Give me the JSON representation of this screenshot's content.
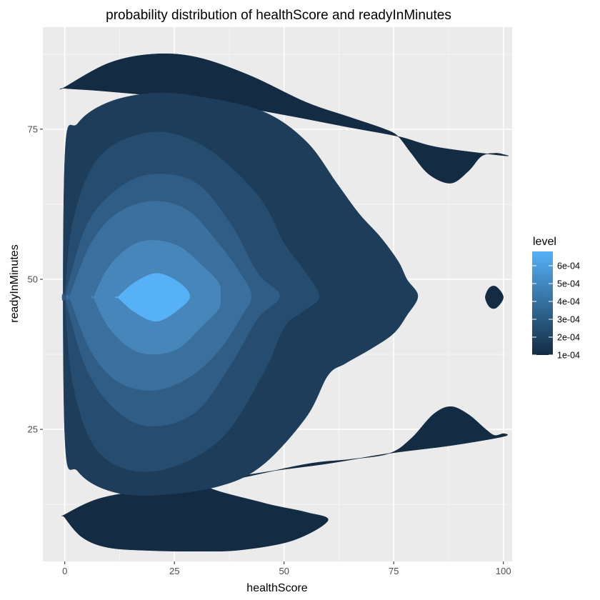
{
  "chart_data": {
    "type": "contour",
    "title": "probability distribution of healthScore and readyInMinutes",
    "xlabel": "healthScore",
    "ylabel": "readyInMinutes",
    "xlim": [
      -5,
      102
    ],
    "ylim": [
      3,
      92
    ],
    "x_ticks": [
      0,
      25,
      50,
      75,
      100
    ],
    "y_ticks": [
      25,
      50,
      75
    ],
    "x_tick_labels": [
      "0",
      "25",
      "50",
      "75",
      "100"
    ],
    "y_tick_labels": [
      "25",
      "50",
      "75"
    ],
    "legend": {
      "title": "level",
      "placement": "right",
      "min": 0.0001,
      "max": 0.00068,
      "ticks": [
        0.0001,
        0.0002,
        0.0003,
        0.0004,
        0.0005,
        0.0006
      ],
      "labels": [
        "1e-04",
        "2e-04",
        "3e-04",
        "4e-04",
        "5e-04",
        "6e-04"
      ],
      "color_low": "#132b43",
      "color_high": "#56b1f7"
    },
    "bands": [
      {
        "level": 0.0001,
        "color": "#132B43",
        "regions": [
          [
            [
              0,
              82
            ],
            [
              10,
              86
            ],
            [
              20,
              87.5
            ],
            [
              30,
              87
            ],
            [
              42,
              84
            ],
            [
              55,
              79.5
            ],
            [
              65,
              77
            ],
            [
              73,
              75
            ],
            [
              76,
              73.8
            ],
            [
              79,
              71
            ],
            [
              83,
              67.5
            ],
            [
              88,
              66
            ],
            [
              92,
              68
            ],
            [
              95,
              70.5
            ],
            [
              98,
              71
            ],
            [
              100,
              70.8
            ],
            [
              100,
              70.6
            ],
            [
              85,
              72
            ],
            [
              76,
              73.8
            ],
            [
              65,
              75.3
            ],
            [
              50,
              77.4
            ],
            [
              35,
              79.3
            ],
            [
              20,
              80.6
            ],
            [
              8,
              81.4
            ],
            [
              0,
              81.8
            ]
          ],
          [
            [
              0,
              10.8
            ],
            [
              8,
              13.5
            ],
            [
              20,
              15
            ],
            [
              35,
              16.2
            ],
            [
              55,
              19.2
            ],
            [
              65,
              20
            ],
            [
              74,
              21
            ],
            [
              79,
              23.5
            ],
            [
              84,
              27.5
            ],
            [
              88,
              28.8
            ],
            [
              92,
              27.5
            ],
            [
              96,
              25
            ],
            [
              98,
              24
            ],
            [
              100,
              24.3
            ],
            [
              100,
              23.8
            ],
            [
              88,
              22.3
            ],
            [
              74,
              21
            ],
            [
              60,
              19.3
            ],
            [
              45,
              17.8
            ],
            [
              32,
              15.8
            ],
            [
              45,
              12.8
            ],
            [
              55,
              11.2
            ],
            [
              60,
              9.8
            ],
            [
              52,
              6.5
            ],
            [
              40,
              4.9
            ],
            [
              30,
              4.7
            ],
            [
              20,
              4.8
            ],
            [
              10,
              5.3
            ],
            [
              4,
              7
            ],
            [
              0,
              10.3
            ]
          ],
          [
            [
              96,
              46.5
            ],
            [
              97,
              45.3
            ],
            [
              98.5,
              45.3
            ],
            [
              100,
              47
            ],
            [
              98.5,
              48.7
            ],
            [
              97,
              48.7
            ],
            [
              96,
              47.5
            ]
          ]
        ]
      },
      {
        "level": 0.0002,
        "color": "#1D3D5B",
        "regions": [
          [
            [
              0,
              70
            ],
            [
              3,
              76
            ],
            [
              10,
              79.5
            ],
            [
              20,
              81
            ],
            [
              30,
              80.5
            ],
            [
              45,
              78
            ],
            [
              55,
              73
            ],
            [
              62,
              66
            ],
            [
              67,
              61
            ],
            [
              72,
              57
            ],
            [
              76,
              53
            ],
            [
              78,
              50
            ],
            [
              80.5,
              47.2
            ],
            [
              78,
              44
            ],
            [
              75,
              41
            ],
            [
              70,
              38.5
            ],
            [
              64,
              36
            ],
            [
              60,
              34
            ],
            [
              55,
              27
            ],
            [
              45,
              19
            ],
            [
              35,
              15.5
            ],
            [
              20,
              14
            ],
            [
              10,
              14.8
            ],
            [
              3,
              18
            ],
            [
              0,
              24
            ]
          ]
        ]
      },
      {
        "level": 0.0003,
        "color": "#264D6F",
        "regions": [
          [
            [
              0,
              47
            ],
            [
              2,
              60
            ],
            [
              8,
              70.5
            ],
            [
              20,
              74.5
            ],
            [
              32,
              72
            ],
            [
              44,
              64
            ],
            [
              50,
              56
            ],
            [
              54,
              52
            ],
            [
              58,
              47.2
            ],
            [
              54,
              44.5
            ],
            [
              50,
              42
            ],
            [
              45,
              34
            ],
            [
              35,
              23
            ],
            [
              20,
              18
            ],
            [
              8,
              21
            ],
            [
              2,
              32
            ],
            [
              0,
              47
            ]
          ]
        ]
      },
      {
        "level": 0.0004,
        "color": "#305D85",
        "regions": [
          [
            [
              0,
              47
            ],
            [
              5,
              59
            ],
            [
              12,
              65
            ],
            [
              20,
              67.5
            ],
            [
              30,
              66
            ],
            [
              38,
              59
            ],
            [
              44,
              51
            ],
            [
              49,
              47.2
            ],
            [
              44,
              43.5
            ],
            [
              38,
              36
            ],
            [
              30,
              28
            ],
            [
              20,
              25.5
            ],
            [
              12,
              28
            ],
            [
              5,
              35
            ],
            [
              0,
              47
            ]
          ]
        ]
      },
      {
        "level": 0.0005,
        "color": "#3B6F9D",
        "regions": [
          [
            [
              1,
              47
            ],
            [
              6,
              56
            ],
            [
              12,
              61
            ],
            [
              20,
              63
            ],
            [
              28,
              61.5
            ],
            [
              35,
              56
            ],
            [
              40,
              51
            ],
            [
              42.5,
              47.2
            ],
            [
              40,
              43.5
            ],
            [
              35,
              38
            ],
            [
              28,
              33.5
            ],
            [
              20,
              31.5
            ],
            [
              12,
              33
            ],
            [
              6,
              38
            ],
            [
              1,
              47
            ]
          ]
        ]
      },
      {
        "level": 0.0006,
        "color": "#4786BB",
        "regions": [
          [
            [
              6.5,
              47
            ],
            [
              10,
              52
            ],
            [
              15,
              55.5
            ],
            [
              20,
              56.5
            ],
            [
              26,
              55.5
            ],
            [
              31,
              52.5
            ],
            [
              35,
              49.5
            ],
            [
              35.5,
              47.2
            ],
            [
              35,
              45
            ],
            [
              31,
              42
            ],
            [
              26,
              38.5
            ],
            [
              20,
              37.5
            ],
            [
              15,
              38.5
            ],
            [
              10,
              42
            ],
            [
              6.5,
              47
            ]
          ]
        ]
      },
      {
        "level": 0.00068,
        "color": "#56B1F7",
        "regions": [
          [
            [
              12,
              47
            ],
            [
              16,
              49.5
            ],
            [
              21,
              51
            ],
            [
              26,
              49.5
            ],
            [
              28.5,
              47.2
            ],
            [
              26,
              45
            ],
            [
              21,
              43
            ],
            [
              16,
              44.5
            ],
            [
              12,
              47
            ]
          ]
        ]
      }
    ]
  }
}
